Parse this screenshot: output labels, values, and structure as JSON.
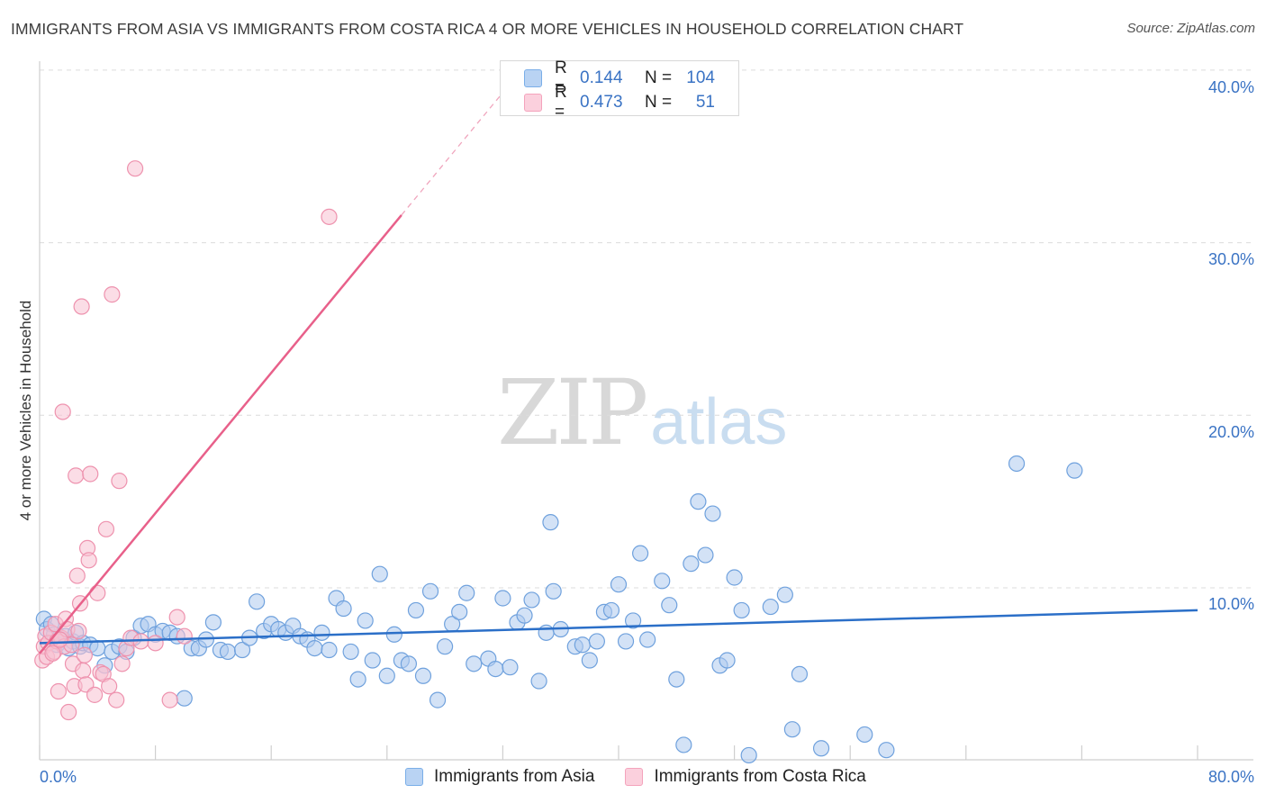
{
  "title": "IMMIGRANTS FROM ASIA VS IMMIGRANTS FROM COSTA RICA 4 OR MORE VEHICLES IN HOUSEHOLD CORRELATION CHART",
  "source": "Source: ZipAtlas.com",
  "watermark": {
    "zip": "ZIP",
    "atlas": "atlas"
  },
  "legend_top": {
    "rows": [
      {
        "r_label": "R =",
        "r_value": "0.144",
        "n_label": "N =",
        "n_value": "104",
        "color": "#7aaee8"
      },
      {
        "r_label": "R =",
        "r_value": "0.473",
        "n_label": "N =",
        "n_value": "51",
        "color": "#f4a3bc"
      }
    ]
  },
  "legend_bottom": [
    {
      "label": "Immigrants from Asia",
      "color": "#7aaee8"
    },
    {
      "label": "Immigrants from Costa Rica",
      "color": "#f4a3bc"
    }
  ],
  "chart_data": {
    "type": "scatter",
    "title": "IMMIGRANTS FROM ASIA VS IMMIGRANTS FROM COSTA RICA 4 OR MORE VEHICLES IN HOUSEHOLD CORRELATION CHART",
    "xlabel": "",
    "ylabel": "4 or more Vehicles in Household",
    "xlim": [
      0,
      80
    ],
    "ylim": [
      0,
      40
    ],
    "x_tick_labels": [
      "0.0%",
      "80.0%"
    ],
    "y_tick_labels": [
      "10.0%",
      "20.0%",
      "30.0%",
      "40.0%"
    ],
    "y_ticks": [
      10,
      20,
      30,
      40
    ],
    "grid": true,
    "series": [
      {
        "name": "Immigrants from Asia",
        "color": "#7aaee8",
        "line_color": "#2b6fc8",
        "trend": {
          "x": [
            0,
            80
          ],
          "y": [
            6.8,
            8.7
          ]
        },
        "points": [
          [
            0.3,
            8.2
          ],
          [
            0.5,
            7.6
          ],
          [
            0.8,
            7.9
          ],
          [
            1.0,
            7.3
          ],
          [
            1.2,
            6.7
          ],
          [
            1.5,
            7.0
          ],
          [
            1.8,
            7.2
          ],
          [
            2.0,
            6.5
          ],
          [
            2.3,
            6.9
          ],
          [
            2.5,
            7.4
          ],
          [
            2.8,
            6.6
          ],
          [
            3.0,
            6.8
          ],
          [
            3.5,
            6.7
          ],
          [
            4.0,
            6.5
          ],
          [
            4.5,
            5.5
          ],
          [
            5.0,
            6.3
          ],
          [
            5.5,
            6.6
          ],
          [
            6.0,
            6.3
          ],
          [
            6.5,
            7.1
          ],
          [
            7.0,
            7.8
          ],
          [
            7.5,
            7.9
          ],
          [
            8.0,
            7.3
          ],
          [
            8.5,
            7.5
          ],
          [
            9.0,
            7.4
          ],
          [
            9.5,
            7.2
          ],
          [
            10.0,
            3.6
          ],
          [
            10.5,
            6.5
          ],
          [
            11.0,
            6.5
          ],
          [
            11.5,
            7.0
          ],
          [
            12.0,
            8.0
          ],
          [
            12.5,
            6.4
          ],
          [
            13.0,
            6.3
          ],
          [
            14.0,
            6.4
          ],
          [
            14.5,
            7.1
          ],
          [
            15.0,
            9.2
          ],
          [
            15.5,
            7.5
          ],
          [
            16.0,
            7.9
          ],
          [
            16.5,
            7.6
          ],
          [
            17.0,
            7.4
          ],
          [
            17.5,
            7.8
          ],
          [
            18.0,
            7.2
          ],
          [
            18.5,
            7.0
          ],
          [
            19.0,
            6.5
          ],
          [
            19.5,
            7.4
          ],
          [
            20.0,
            6.4
          ],
          [
            20.5,
            9.4
          ],
          [
            21.0,
            8.8
          ],
          [
            21.5,
            6.3
          ],
          [
            22.0,
            4.7
          ],
          [
            22.5,
            8.1
          ],
          [
            23.0,
            5.8
          ],
          [
            23.5,
            10.8
          ],
          [
            24.0,
            4.9
          ],
          [
            24.5,
            7.3
          ],
          [
            25.0,
            5.8
          ],
          [
            25.5,
            5.6
          ],
          [
            26.0,
            8.7
          ],
          [
            26.5,
            4.9
          ],
          [
            27.0,
            9.8
          ],
          [
            27.5,
            3.5
          ],
          [
            28.0,
            6.6
          ],
          [
            28.5,
            7.9
          ],
          [
            29.0,
            8.6
          ],
          [
            29.5,
            9.7
          ],
          [
            30.0,
            5.6
          ],
          [
            31.0,
            5.9
          ],
          [
            31.5,
            5.3
          ],
          [
            32.0,
            9.4
          ],
          [
            32.5,
            5.4
          ],
          [
            33.0,
            8.0
          ],
          [
            33.5,
            8.4
          ],
          [
            34.0,
            9.3
          ],
          [
            34.5,
            4.6
          ],
          [
            35.0,
            7.4
          ],
          [
            35.5,
            9.8
          ],
          [
            36.0,
            7.6
          ],
          [
            37.0,
            6.6
          ],
          [
            37.5,
            6.7
          ],
          [
            38.0,
            5.8
          ],
          [
            38.5,
            6.9
          ],
          [
            39.0,
            8.6
          ],
          [
            39.5,
            8.7
          ],
          [
            40.0,
            10.2
          ],
          [
            40.5,
            6.9
          ],
          [
            41.0,
            8.1
          ],
          [
            41.5,
            12.0
          ],
          [
            42.0,
            7.0
          ],
          [
            43.0,
            10.4
          ],
          [
            43.5,
            9.0
          ],
          [
            44.0,
            4.7
          ],
          [
            44.5,
            0.9
          ],
          [
            45.0,
            11.4
          ],
          [
            45.5,
            15.0
          ],
          [
            46.0,
            11.9
          ],
          [
            46.5,
            14.3
          ],
          [
            47.0,
            5.5
          ],
          [
            47.5,
            5.8
          ],
          [
            48.0,
            10.6
          ],
          [
            48.5,
            8.7
          ],
          [
            49.0,
            0.3
          ],
          [
            50.5,
            8.9
          ],
          [
            51.5,
            9.6
          ],
          [
            52.0,
            1.8
          ],
          [
            52.5,
            5.0
          ],
          [
            54.0,
            0.7
          ],
          [
            57.0,
            1.5
          ],
          [
            58.5,
            0.6
          ],
          [
            67.5,
            17.2
          ],
          [
            71.5,
            16.8
          ],
          [
            35.3,
            13.8
          ]
        ]
      },
      {
        "name": "Immigrants from Costa Rica",
        "color": "#f4a3bc",
        "line_color": "#e8608a",
        "trend": {
          "x": [
            0,
            25
          ],
          "y": [
            6.2,
            31.6
          ]
        },
        "trend_extension": {
          "x": [
            25,
            32.3
          ],
          "y": [
            31.6,
            39.0
          ]
        },
        "points": [
          [
            0.2,
            5.8
          ],
          [
            0.3,
            6.6
          ],
          [
            0.4,
            7.2
          ],
          [
            0.5,
            6.0
          ],
          [
            0.6,
            6.8
          ],
          [
            0.8,
            7.4
          ],
          [
            1.0,
            6.3
          ],
          [
            1.1,
            7.9
          ],
          [
            1.2,
            6.9
          ],
          [
            1.3,
            4.0
          ],
          [
            1.5,
            7.1
          ],
          [
            1.6,
            20.2
          ],
          [
            1.7,
            6.6
          ],
          [
            1.8,
            8.2
          ],
          [
            1.9,
            7.6
          ],
          [
            2.0,
            2.8
          ],
          [
            2.2,
            6.7
          ],
          [
            2.3,
            5.6
          ],
          [
            2.4,
            4.3
          ],
          [
            2.5,
            16.5
          ],
          [
            2.6,
            10.7
          ],
          [
            2.7,
            7.5
          ],
          [
            2.8,
            9.1
          ],
          [
            2.9,
            26.3
          ],
          [
            3.0,
            5.2
          ],
          [
            3.1,
            6.1
          ],
          [
            3.2,
            4.4
          ],
          [
            3.3,
            12.3
          ],
          [
            3.4,
            11.6
          ],
          [
            3.5,
            16.6
          ],
          [
            3.8,
            3.8
          ],
          [
            4.0,
            9.7
          ],
          [
            4.2,
            5.1
          ],
          [
            4.4,
            5.0
          ],
          [
            4.6,
            13.4
          ],
          [
            4.8,
            4.3
          ],
          [
            5.0,
            27.0
          ],
          [
            5.3,
            3.5
          ],
          [
            5.5,
            16.2
          ],
          [
            5.7,
            5.6
          ],
          [
            6.0,
            6.5
          ],
          [
            6.3,
            7.1
          ],
          [
            6.6,
            34.3
          ],
          [
            7.0,
            6.9
          ],
          [
            8.0,
            6.8
          ],
          [
            9.0,
            3.5
          ],
          [
            9.5,
            8.3
          ],
          [
            10.0,
            7.2
          ],
          [
            20.0,
            31.5
          ],
          [
            1.4,
            7.0
          ],
          [
            0.9,
            6.2
          ]
        ]
      }
    ]
  }
}
